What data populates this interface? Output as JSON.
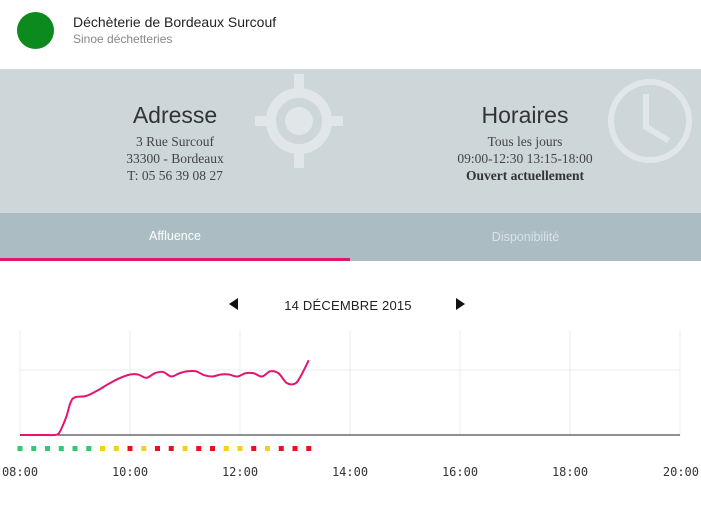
{
  "header": {
    "title": "Déchèterie de Bordeaux Surcouf",
    "subtitle": "Sinoe déchetteries",
    "status_color": "#0c8a1e"
  },
  "address": {
    "heading": "Adresse",
    "street": "3 Rue Surcouf",
    "city": "33300 - Bordeaux",
    "phone": "T: 05 56 39 08 27",
    "icon": "location-target-icon"
  },
  "hours": {
    "heading": "Horaires",
    "days": "Tous les jours",
    "times": "09:00-12:30 13:15-18:00",
    "status": "Ouvert actuellement",
    "icon": "clock-icon"
  },
  "tabs": [
    {
      "label": "Affluence",
      "active": true
    },
    {
      "label": "Disponibilité",
      "active": false
    }
  ],
  "date_nav": {
    "date": "14 DÉCEMBRE 2015"
  },
  "colors": {
    "accent": "#e2156f",
    "low": "#2ecc71",
    "medium": "#f1d21b",
    "high": "#e8101e"
  },
  "chart_data": {
    "type": "line",
    "x_ticks": [
      "08:00",
      "10:00",
      "12:00",
      "14:00",
      "16:00",
      "18:00",
      "20:00"
    ],
    "xlim": [
      8,
      20
    ],
    "ylim": [
      0,
      100
    ],
    "grid": true,
    "series": [
      {
        "x": [
          8.0,
          8.5,
          8.6,
          8.7,
          8.78,
          8.85,
          8.92,
          9.0,
          9.2,
          9.4,
          9.6,
          9.8,
          10.0,
          10.15,
          10.3,
          10.45,
          10.6,
          10.75,
          10.9,
          11.05,
          11.2,
          11.35,
          11.5,
          11.65,
          11.8,
          11.95,
          12.1,
          12.25,
          12.4,
          12.55,
          12.7,
          12.85,
          13.0,
          13.1,
          13.25
        ],
        "y": [
          0,
          0,
          0,
          2,
          15,
          30,
          50,
          58,
          60,
          68,
          78,
          87,
          93,
          93,
          88,
          95,
          97,
          90,
          95,
          98,
          98,
          92,
          90,
          93,
          93,
          90,
          95,
          95,
          90,
          98,
          95,
          80,
          79,
          90,
          115
        ]
      }
    ],
    "levels": [
      {
        "x": 8.0,
        "level": "low"
      },
      {
        "x": 8.25,
        "level": "low"
      },
      {
        "x": 8.5,
        "level": "low"
      },
      {
        "x": 8.75,
        "level": "low"
      },
      {
        "x": 9.0,
        "level": "low"
      },
      {
        "x": 9.25,
        "level": "low"
      },
      {
        "x": 9.5,
        "level": "medium"
      },
      {
        "x": 9.75,
        "level": "medium"
      },
      {
        "x": 10.0,
        "level": "high"
      },
      {
        "x": 10.25,
        "level": "medium"
      },
      {
        "x": 10.5,
        "level": "high"
      },
      {
        "x": 10.75,
        "level": "high"
      },
      {
        "x": 11.0,
        "level": "medium"
      },
      {
        "x": 11.25,
        "level": "high"
      },
      {
        "x": 11.5,
        "level": "high"
      },
      {
        "x": 11.75,
        "level": "medium"
      },
      {
        "x": 12.0,
        "level": "medium"
      },
      {
        "x": 12.25,
        "level": "high"
      },
      {
        "x": 12.5,
        "level": "medium"
      },
      {
        "x": 12.75,
        "level": "high"
      },
      {
        "x": 13.0,
        "level": "high"
      },
      {
        "x": 13.25,
        "level": "high"
      }
    ]
  }
}
